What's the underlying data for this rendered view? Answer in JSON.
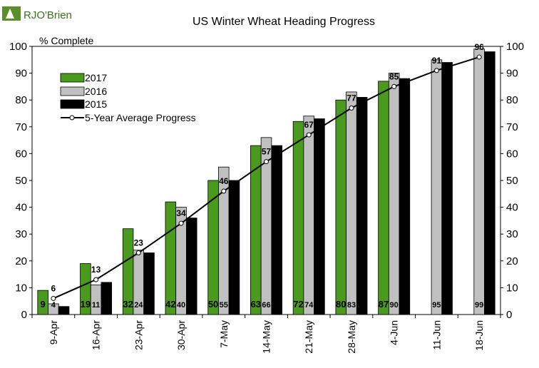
{
  "brand": {
    "logo_text": "RJO'Brien"
  },
  "chart_data": {
    "type": "bar",
    "title": "US Winter Wheat Heading Progress",
    "ylabel": "% Complete",
    "xlabel": "",
    "ylim": [
      0,
      100
    ],
    "yticks": [
      0,
      10,
      20,
      30,
      40,
      50,
      60,
      70,
      80,
      90,
      100
    ],
    "categories": [
      "9-Apr",
      "16-Apr",
      "23-Apr",
      "30-Apr",
      "7-May",
      "14-May",
      "21-May",
      "28-May",
      "4-Jun",
      "11-Jun",
      "18-Jun"
    ],
    "series": [
      {
        "name": "2017",
        "color": "#4a9a1e",
        "values": [
          9,
          19,
          32,
          42,
          50,
          63,
          72,
          80,
          87,
          null,
          null
        ],
        "labels": [
          "9",
          "19",
          "32",
          "42",
          "50",
          "63",
          "72",
          "80",
          "87",
          "",
          ""
        ]
      },
      {
        "name": "2016",
        "color": "#c0c0c0",
        "values": [
          4,
          11,
          24,
          40,
          55,
          66,
          74,
          83,
          90,
          95,
          99
        ],
        "labels": [
          "4",
          "11",
          "24",
          "40",
          "55",
          "66",
          "74",
          "83",
          "90",
          "95",
          "99"
        ]
      },
      {
        "name": "2015",
        "color": "#000000",
        "values": [
          3,
          12,
          23,
          36,
          50,
          63,
          73,
          81,
          88,
          94,
          98
        ],
        "labels": [
          "",
          "",
          "",
          "",
          "",
          "",
          "",
          "",
          "",
          "",
          ""
        ]
      }
    ],
    "line": {
      "name": "5-Year Average Progress",
      "values": [
        6,
        13,
        23,
        34,
        46,
        57,
        67,
        77,
        85,
        91,
        96
      ],
      "labels": [
        "6",
        "13",
        "23",
        "34",
        "46",
        "57",
        "67",
        "77",
        "85",
        "91",
        "96"
      ]
    },
    "grid": false,
    "legend_position": "top-left"
  }
}
